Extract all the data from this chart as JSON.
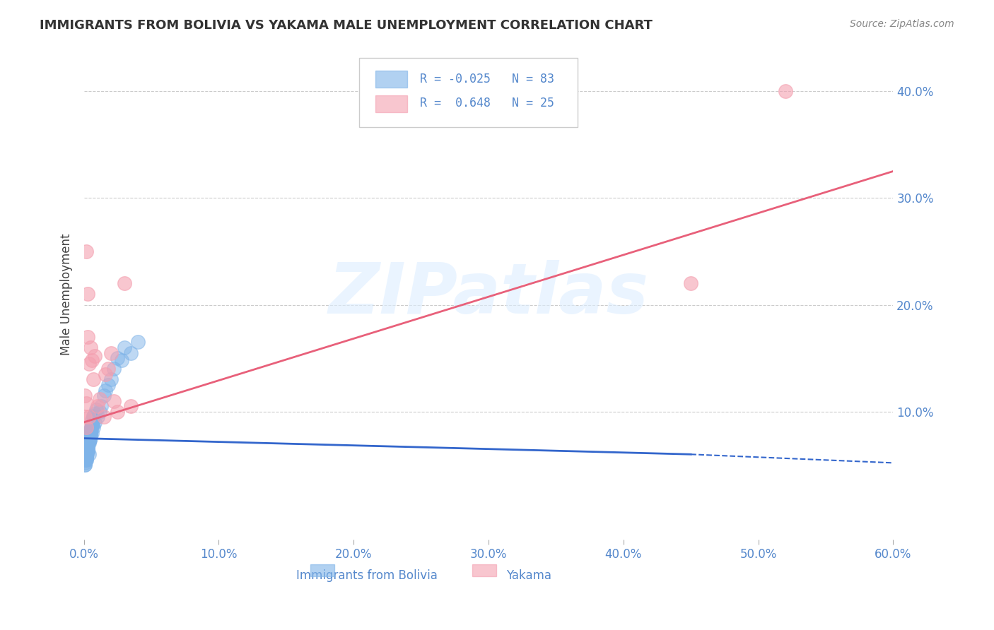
{
  "title": "IMMIGRANTS FROM BOLIVIA VS YAKAMA MALE UNEMPLOYMENT CORRELATION CHART",
  "source_text": "Source: ZipAtlas.com",
  "xlabel": "",
  "ylabel": "Male Unemployment",
  "xlim": [
    0.0,
    0.6
  ],
  "ylim": [
    -0.02,
    0.44
  ],
  "xtick_labels": [
    "0.0%",
    "10.0%",
    "20.0%",
    "30.0%",
    "40.0%",
    "50.0%",
    "60.0%"
  ],
  "xtick_values": [
    0.0,
    0.1,
    0.2,
    0.3,
    0.4,
    0.5,
    0.6
  ],
  "ytick_labels": [
    "10.0%",
    "20.0%",
    "30.0%",
    "40.0%"
  ],
  "ytick_values": [
    0.1,
    0.2,
    0.3,
    0.4
  ],
  "watermark": "ZIPatlas",
  "legend_label1": "Immigrants from Bolivia",
  "legend_label2": "Yakama",
  "R1": "-0.025",
  "N1": "83",
  "R2": "0.648",
  "N2": "25",
  "blue_color": "#7EB3E8",
  "pink_color": "#F4A0B0",
  "blue_line_color": "#3366CC",
  "pink_line_color": "#E8607A",
  "background_color": "#FFFFFF",
  "blue_scatter": {
    "x": [
      0.002,
      0.003,
      0.001,
      0.004,
      0.005,
      0.002,
      0.003,
      0.001,
      0.002,
      0.004,
      0.006,
      0.003,
      0.002,
      0.001,
      0.003,
      0.004,
      0.002,
      0.003,
      0.001,
      0.005,
      0.003,
      0.002,
      0.004,
      0.003,
      0.002,
      0.001,
      0.003,
      0.002,
      0.004,
      0.003,
      0.005,
      0.002,
      0.003,
      0.001,
      0.002,
      0.003,
      0.004,
      0.002,
      0.003,
      0.001,
      0.006,
      0.007,
      0.008,
      0.004,
      0.005,
      0.003,
      0.002,
      0.004,
      0.003,
      0.005,
      0.006,
      0.004,
      0.003,
      0.005,
      0.007,
      0.004,
      0.003,
      0.002,
      0.006,
      0.005,
      0.008,
      0.006,
      0.004,
      0.003,
      0.005,
      0.007,
      0.009,
      0.006,
      0.004,
      0.003,
      0.012,
      0.015,
      0.01,
      0.02,
      0.018,
      0.022,
      0.025,
      0.03,
      0.016,
      0.013,
      0.035,
      0.04,
      0.028
    ],
    "y": [
      0.065,
      0.07,
      0.055,
      0.06,
      0.075,
      0.068,
      0.072,
      0.058,
      0.063,
      0.071,
      0.08,
      0.065,
      0.062,
      0.058,
      0.069,
      0.074,
      0.061,
      0.067,
      0.055,
      0.078,
      0.066,
      0.059,
      0.073,
      0.068,
      0.06,
      0.052,
      0.064,
      0.057,
      0.076,
      0.065,
      0.082,
      0.059,
      0.066,
      0.05,
      0.06,
      0.068,
      0.075,
      0.058,
      0.064,
      0.05,
      0.088,
      0.085,
      0.09,
      0.076,
      0.08,
      0.067,
      0.055,
      0.078,
      0.069,
      0.082,
      0.092,
      0.079,
      0.066,
      0.084,
      0.095,
      0.077,
      0.064,
      0.055,
      0.088,
      0.08,
      0.098,
      0.086,
      0.072,
      0.064,
      0.083,
      0.096,
      0.102,
      0.087,
      0.073,
      0.062,
      0.1,
      0.115,
      0.095,
      0.13,
      0.125,
      0.14,
      0.15,
      0.16,
      0.12,
      0.105,
      0.155,
      0.165,
      0.148
    ]
  },
  "pink_scatter": {
    "x": [
      0.001,
      0.002,
      0.003,
      0.004,
      0.005,
      0.006,
      0.007,
      0.008,
      0.01,
      0.012,
      0.015,
      0.018,
      0.02,
      0.025,
      0.03,
      0.035,
      0.022,
      0.016,
      0.002,
      0.003,
      0.001,
      0.004,
      0.002,
      0.45,
      0.52
    ],
    "y": [
      0.095,
      0.085,
      0.17,
      0.145,
      0.16,
      0.148,
      0.13,
      0.152,
      0.105,
      0.112,
      0.095,
      0.14,
      0.155,
      0.1,
      0.22,
      0.105,
      0.11,
      0.135,
      0.25,
      0.21,
      0.115,
      0.095,
      0.108,
      0.22,
      0.4
    ]
  },
  "blue_trendline": {
    "x": [
      0.0,
      0.45
    ],
    "y": [
      0.075,
      0.06
    ]
  },
  "pink_trendline": {
    "x": [
      0.0,
      0.6
    ],
    "y": [
      0.09,
      0.325
    ]
  }
}
